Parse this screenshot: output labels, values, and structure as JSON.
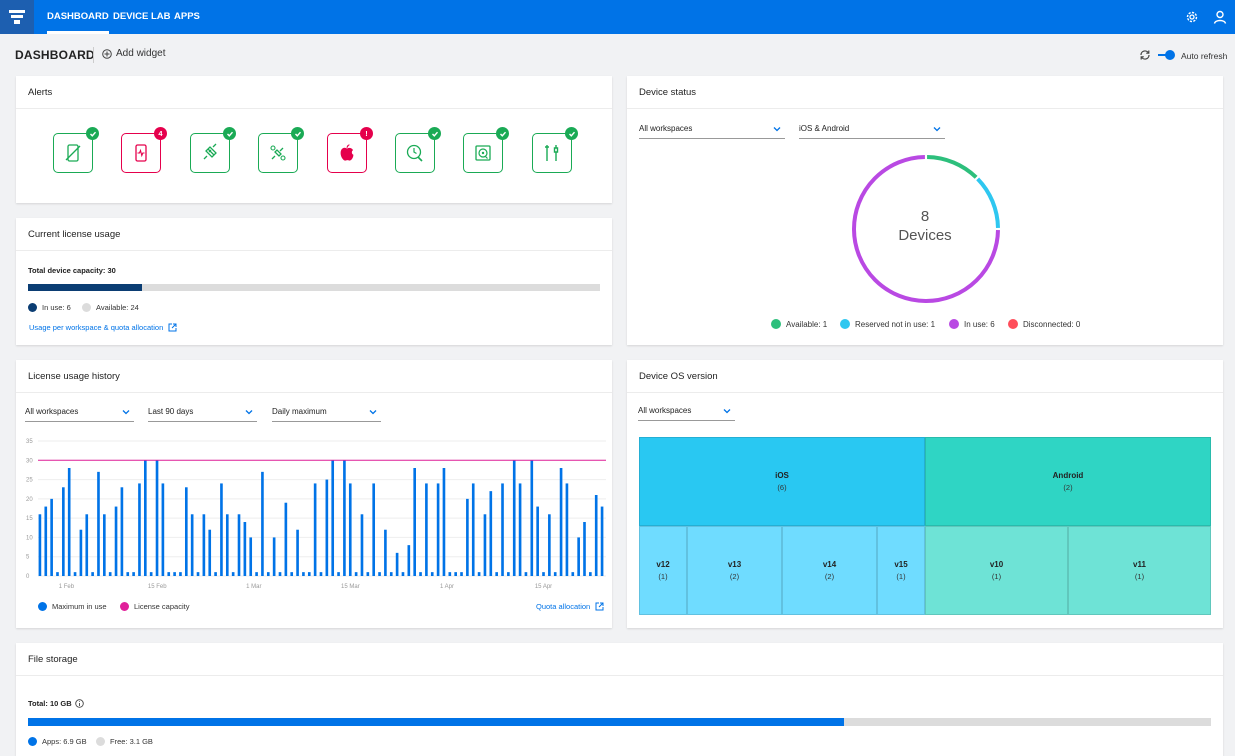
{
  "nav": {
    "tabs": [
      "DASHBOARD",
      "DEVICE LAB",
      "APPS"
    ]
  },
  "header": {
    "title": "DASHBOARD",
    "add_widget": "Add widget",
    "auto_refresh": "Auto refresh"
  },
  "alerts": {
    "title": "Alerts",
    "items": [
      {
        "icon": "no-device-icon",
        "status": "ok",
        "badge": ""
      },
      {
        "icon": "device-heartbeat-icon",
        "status": "alert",
        "badge": "4"
      },
      {
        "icon": "plug-icon",
        "status": "ok",
        "badge": ""
      },
      {
        "icon": "plug-settings-icon",
        "status": "ok",
        "badge": ""
      },
      {
        "icon": "apple-icon",
        "status": "alert",
        "badge": "!"
      },
      {
        "icon": "clock-wrench-icon",
        "status": "ok",
        "badge": ""
      },
      {
        "icon": "disk-icon",
        "status": "ok",
        "badge": ""
      },
      {
        "icon": "tools-icon",
        "status": "ok",
        "badge": ""
      }
    ]
  },
  "license": {
    "title": "Current license usage",
    "capacity_label": "Total device capacity: 30",
    "in_use": 6,
    "capacity": 30,
    "in_use_label": "In use: 6",
    "available_label": "Available: 24",
    "link": "Usage per workspace & quota allocation",
    "colors": {
      "in_use": "#0b3d73",
      "available": "#dcdcdc"
    }
  },
  "device_status": {
    "title": "Device status",
    "workspace_select": "All workspaces",
    "os_select": "iOS & Android",
    "total": "8",
    "total_label": "Devices",
    "legend": [
      {
        "label": "Available: 1",
        "value": 1,
        "color": "#2dbf7c"
      },
      {
        "label": "Reserved not in use: 1",
        "value": 1,
        "color": "#2ec7f0"
      },
      {
        "label": "In use: 6",
        "value": 6,
        "color": "#b949e3"
      },
      {
        "label": "Disconnected: 0",
        "value": 0,
        "color": "#ff4d5a"
      }
    ]
  },
  "history": {
    "title": "License usage history",
    "selects": [
      "All workspaces",
      "Last 90 days",
      "Daily maximum"
    ],
    "legend_max": "Maximum in use",
    "legend_capacity": "License capacity",
    "link": "Quota allocation"
  },
  "chart_data": {
    "type": "bar",
    "title": "License usage history",
    "ylim": [
      0,
      35
    ],
    "y_ticks": [
      "0",
      "5",
      "10",
      "15",
      "20",
      "25",
      "30",
      "35"
    ],
    "x_ticks": [
      "1 Feb",
      "15 Feb",
      "1 Mar",
      "15 Mar",
      "1 Apr",
      "15 Apr"
    ],
    "series": [
      {
        "name": "Maximum in use",
        "color": "#0073e7",
        "values": [
          16,
          18,
          20,
          1,
          23,
          28,
          1,
          12,
          16,
          1,
          27,
          16,
          1,
          18,
          23,
          1,
          1,
          24,
          30,
          1,
          30,
          24,
          1,
          1,
          1,
          23,
          16,
          1,
          16,
          12,
          1,
          24,
          16,
          1,
          16,
          14,
          10,
          1,
          27,
          1,
          10,
          1,
          19,
          1,
          12,
          1,
          1,
          24,
          1,
          25,
          30,
          1,
          30,
          24,
          1,
          16,
          1,
          24,
          1,
          12,
          1,
          6,
          1,
          8,
          28,
          1,
          24,
          1,
          24,
          28,
          1,
          1,
          1,
          20,
          24,
          1,
          16,
          22,
          1,
          24,
          1,
          30,
          24,
          1,
          30,
          18,
          1,
          16,
          1,
          28,
          24,
          1,
          10,
          14,
          1,
          21,
          18
        ]
      },
      {
        "name": "License capacity",
        "color": "#e0209a",
        "values": [
          30
        ]
      }
    ],
    "grid": true
  },
  "os_version": {
    "title": "Device OS version",
    "workspace_select": "All workspaces",
    "groups": [
      {
        "name": "iOS",
        "count": "(6)",
        "color": "#29c8f2",
        "versions": [
          {
            "name": "v12",
            "count": "(1)"
          },
          {
            "name": "v13",
            "count": "(2)"
          },
          {
            "name": "v14",
            "count": "(2)"
          },
          {
            "name": "v15",
            "count": "(1)"
          }
        ]
      },
      {
        "name": "Android",
        "count": "(2)",
        "color": "#2fd5c4",
        "versions": [
          {
            "name": "v10",
            "count": "(1)"
          },
          {
            "name": "v11",
            "count": "(1)"
          }
        ]
      }
    ],
    "colors": {
      "ios_sub": "#6fdcff",
      "android_sub": "#6ee3d6"
    }
  },
  "storage": {
    "title": "File storage",
    "total_label": "Total: 10 GB",
    "apps_label": "Apps: 6.9 GB",
    "free_label": "Free: 3.1 GB",
    "apps_fraction": 0.69,
    "colors": {
      "apps": "#0073e7",
      "free": "#dcdcdc"
    }
  }
}
